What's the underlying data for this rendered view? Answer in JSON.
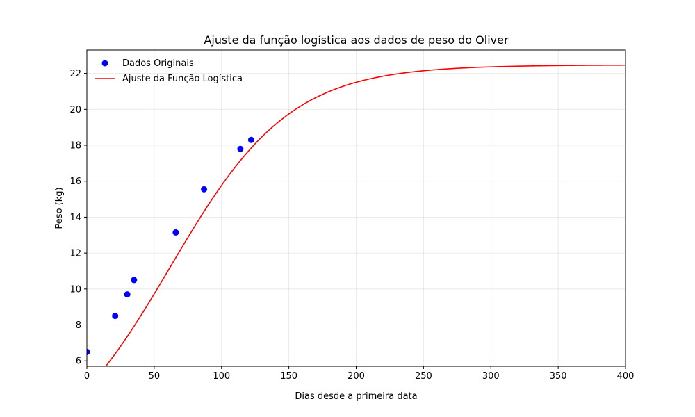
{
  "chart_data": {
    "type": "scatter",
    "title": "Ajuste da função logística aos dados de peso do Oliver",
    "xlabel": "Dias desde a primeira data",
    "ylabel": "Peso (kg)",
    "xlim": [
      0,
      400
    ],
    "ylim": [
      5.7,
      23.3
    ],
    "xticks": [
      0,
      50,
      100,
      150,
      200,
      250,
      300,
      350,
      400
    ],
    "yticks": [
      6,
      8,
      10,
      12,
      14,
      16,
      18,
      20,
      22
    ],
    "grid": true,
    "legend_position": "top-left",
    "series": [
      {
        "name": "Dados Originais",
        "kind": "scatter",
        "color": "#0000ff",
        "points": [
          {
            "x": 0,
            "y": 6.5
          },
          {
            "x": 21,
            "y": 8.5
          },
          {
            "x": 30,
            "y": 9.7
          },
          {
            "x": 35,
            "y": 10.5
          },
          {
            "x": 66,
            "y": 13.15
          },
          {
            "x": 87,
            "y": 15.55
          },
          {
            "x": 114,
            "y": 17.8
          },
          {
            "x": 122,
            "y": 18.3
          }
        ]
      },
      {
        "name": "Ajuste da Função Logística",
        "kind": "line",
        "color": "#ff0000",
        "model": {
          "L": 22.47,
          "k": 0.0225,
          "x0": 62.0
        }
      }
    ]
  }
}
